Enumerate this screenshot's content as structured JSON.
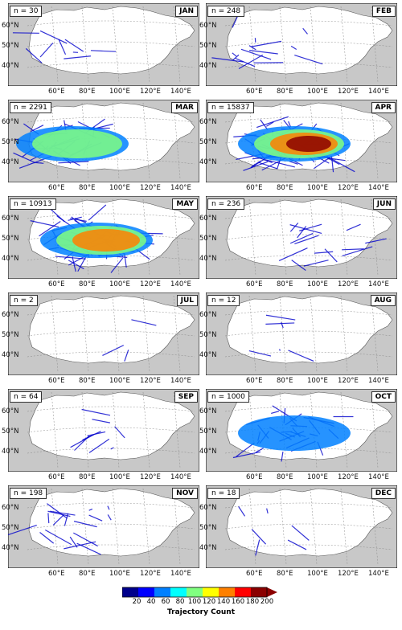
{
  "panels": [
    {
      "month": "JAN",
      "n": "n = 30",
      "intensity": 0.1,
      "region": "west"
    },
    {
      "month": "FEB",
      "n": "n = 248",
      "intensity": 0.2,
      "region": "west"
    },
    {
      "month": "MAR",
      "n": "n = 2291",
      "intensity": 0.5,
      "region": "west"
    },
    {
      "month": "APR",
      "n": "n = 15837",
      "intensity": 1.0,
      "region": "central"
    },
    {
      "month": "MAY",
      "n": "n = 10913",
      "intensity": 0.9,
      "region": "central"
    },
    {
      "month": "JUN",
      "n": "n = 236",
      "intensity": 0.2,
      "region": "east"
    },
    {
      "month": "JUL",
      "n": "n = 2",
      "intensity": 0.0,
      "region": "central"
    },
    {
      "month": "AUG",
      "n": "n = 12",
      "intensity": 0.05,
      "region": "west"
    },
    {
      "month": "SEP",
      "n": "n = 64",
      "intensity": 0.1,
      "region": "central"
    },
    {
      "month": "OCT",
      "n": "n = 1000",
      "intensity": 0.45,
      "region": "central"
    },
    {
      "month": "NOV",
      "n": "n = 198",
      "intensity": 0.25,
      "region": "west"
    },
    {
      "month": "DEC",
      "n": "n = 18",
      "intensity": 0.05,
      "region": "west"
    }
  ],
  "lat_labels": [
    "60°N",
    "50°N",
    "40°N"
  ],
  "lon_labels": [
    "60°E",
    "80°E",
    "100°E",
    "120°E",
    "140°E"
  ],
  "colorbar": {
    "ticks": [
      "20",
      "40",
      "60",
      "80",
      "100",
      "120",
      "140",
      "160",
      "180",
      "200"
    ],
    "title": "Trajectory Count",
    "colors": [
      "#00008b",
      "#0000ff",
      "#0080ff",
      "#00ffff",
      "#80ff80",
      "#ffff00",
      "#ff8000",
      "#ff0000",
      "#8b0000"
    ]
  },
  "colors": {
    "ocean": "#c8c8c8",
    "land": "#ffffff",
    "grid": "#888888"
  }
}
